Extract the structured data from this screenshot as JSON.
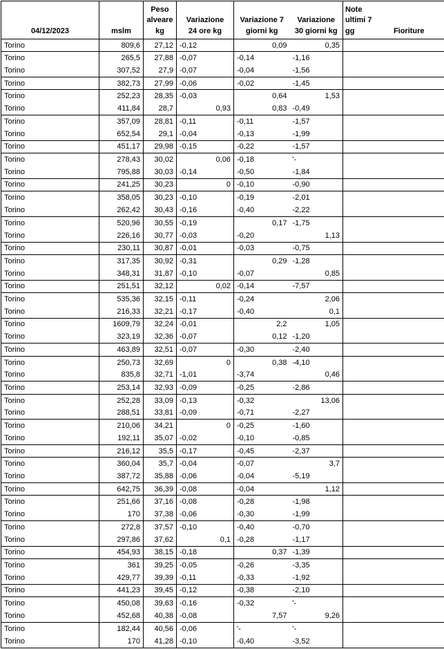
{
  "colors": {
    "border": "#000000",
    "text": "#000000",
    "background": "#ffffff"
  },
  "header": {
    "date": "04/12/2023",
    "mslm": "mslm",
    "peso": "Peso\nalveare\nkg",
    "var24": "Variazione\n24 ore kg",
    "var7": "Variazione 7\ngiorni kg",
    "var30": "Variazione\n30 giorni kg",
    "note": "Note\nultimi 7\ngg",
    "fioriture": "Fioriture"
  },
  "rows": [
    {
      "loc": "Torino",
      "mslm": "809,6",
      "peso": "27,12",
      "v24": "-0,12",
      "v7": "0,09",
      "v30": "0,35",
      "note": "",
      "fior": "",
      "end": true
    },
    {
      "loc": "Torino",
      "mslm": "265,5",
      "peso": "27,88",
      "v24": "-0,07",
      "v7": "-0,14",
      "v30": "-1,16",
      "note": "",
      "fior": "",
      "end": false
    },
    {
      "loc": "Torino",
      "mslm": "307,52",
      "peso": "27,9",
      "v24": "-0,07",
      "v7": "-0,04",
      "v30": "-1,56",
      "note": "",
      "fior": "",
      "end": true
    },
    {
      "loc": "Torino",
      "mslm": "382,73",
      "peso": "27,99",
      "v24": "-0,06",
      "v7": "-0,02",
      "v30": "-1,45",
      "note": "",
      "fior": "",
      "end": true
    },
    {
      "loc": "Torino",
      "mslm": "252,23",
      "peso": "28,35",
      "v24": "-0,03",
      "v7": "0,64",
      "v30": "1,53",
      "note": "",
      "fior": "",
      "end": false
    },
    {
      "loc": "Torino",
      "mslm": "411,84",
      "peso": "28,7",
      "v24": "0,93",
      "v7": "0,83",
      "v30": "-0,49",
      "note": "",
      "fior": "",
      "end": true
    },
    {
      "loc": "Torino",
      "mslm": "357,09",
      "peso": "28,81",
      "v24": "-0,11",
      "v7": "-0,11",
      "v30": "-1,57",
      "note": "",
      "fior": "",
      "end": false
    },
    {
      "loc": "Torino",
      "mslm": "652,54",
      "peso": "29,1",
      "v24": "-0,04",
      "v7": "-0,13",
      "v30": "-1,99",
      "note": "",
      "fior": "",
      "end": true
    },
    {
      "loc": "Torino",
      "mslm": "451,17",
      "peso": "29,98",
      "v24": "-0,15",
      "v7": "-0,22",
      "v30": "-1,57",
      "note": "",
      "fior": "",
      "end": true
    },
    {
      "loc": "Torino",
      "mslm": "278,43",
      "peso": "30,02",
      "v24": "0,06",
      "v7": "-0,18",
      "v30": "'-",
      "note": "",
      "fior": "",
      "end": false
    },
    {
      "loc": "Torino",
      "mslm": "795,88",
      "peso": "30,03",
      "v24": "-0,14",
      "v7": "-0,50",
      "v30": "-1,84",
      "note": "",
      "fior": "",
      "end": true
    },
    {
      "loc": "Torino",
      "mslm": "241,25",
      "peso": "30,23",
      "v24": "0",
      "v7": "-0,10",
      "v30": "-0,90",
      "note": "",
      "fior": "",
      "end": true
    },
    {
      "loc": "Torino",
      "mslm": "358,05",
      "peso": "30,23",
      "v24": "-0,10",
      "v7": "-0,19",
      "v30": "-2,01",
      "note": "",
      "fior": "",
      "end": false
    },
    {
      "loc": "Torino",
      "mslm": "262,42",
      "peso": "30,43",
      "v24": "-0,16",
      "v7": "-0,40",
      "v30": "-2,22",
      "note": "",
      "fior": "",
      "end": true
    },
    {
      "loc": "Torino",
      "mslm": "520,96",
      "peso": "30,55",
      "v24": "-0,19",
      "v7": "0,17",
      "v30": "-1,75",
      "note": "",
      "fior": "",
      "end": false
    },
    {
      "loc": "Torino",
      "mslm": "226,16",
      "peso": "30,77",
      "v24": "-0,03",
      "v7": "-0,20",
      "v30": "1,13",
      "note": "",
      "fior": "",
      "end": true
    },
    {
      "loc": "Torino",
      "mslm": "230,11",
      "peso": "30,87",
      "v24": "-0,01",
      "v7": "-0,03",
      "v30": "-0,75",
      "note": "",
      "fior": "",
      "end": true
    },
    {
      "loc": "Torino",
      "mslm": "317,35",
      "peso": "30,92",
      "v24": "-0,31",
      "v7": "0,29",
      "v30": "-1,28",
      "note": "",
      "fior": "",
      "end": false
    },
    {
      "loc": "Torino",
      "mslm": "348,31",
      "peso": "31,87",
      "v24": "-0,10",
      "v7": "-0,07",
      "v30": "0,85",
      "note": "",
      "fior": "",
      "end": true
    },
    {
      "loc": "Torino",
      "mslm": "251,51",
      "peso": "32,12",
      "v24": "0,02",
      "v7": "-0,14",
      "v30": "-7,57",
      "note": "",
      "fior": "",
      "end": true
    },
    {
      "loc": "Torino",
      "mslm": "535,36",
      "peso": "32,15",
      "v24": "-0,11",
      "v7": "-0,24",
      "v30": "2,06",
      "note": "",
      "fior": "",
      "end": false
    },
    {
      "loc": "Torino",
      "mslm": "216,33",
      "peso": "32,21",
      "v24": "-0,17",
      "v7": "-0,40",
      "v30": "0,1",
      "note": "",
      "fior": "",
      "end": true
    },
    {
      "loc": "Torino",
      "mslm": "1609,79",
      "peso": "32,24",
      "v24": "-0,01",
      "v7": "2,2",
      "v30": "1,05",
      "note": "",
      "fior": "",
      "end": false
    },
    {
      "loc": "Torino",
      "mslm": "323,19",
      "peso": "32,36",
      "v24": "-0,07",
      "v7": "0,12",
      "v30": "-1,20",
      "note": "",
      "fior": "",
      "end": true
    },
    {
      "loc": "Torino",
      "mslm": "463,89",
      "peso": "32,51",
      "v24": "-0,07",
      "v7": "-0,30",
      "v30": "-2,40",
      "note": "",
      "fior": "",
      "end": true
    },
    {
      "loc": "Torino",
      "mslm": "250,73",
      "peso": "32,69",
      "v24": "0",
      "v7": "0,38",
      "v30": "-4,10",
      "note": "",
      "fior": "",
      "end": false
    },
    {
      "loc": "Torino",
      "mslm": "835,8",
      "peso": "32,71",
      "v24": "-1,01",
      "v7": "-3,74",
      "v30": "0,46",
      "note": "",
      "fior": "",
      "end": true
    },
    {
      "loc": "Torino",
      "mslm": "253,14",
      "peso": "32,93",
      "v24": "-0,09",
      "v7": "-0,25",
      "v30": "-2,86",
      "note": "",
      "fior": "",
      "end": true
    },
    {
      "loc": "Torino",
      "mslm": "252,28",
      "peso": "33,09",
      "v24": "-0,13",
      "v7": "-0,32",
      "v30": "13,06",
      "note": "",
      "fior": "",
      "end": false
    },
    {
      "loc": "Torino",
      "mslm": "288,51",
      "peso": "33,81",
      "v24": "-0,09",
      "v7": "-0,71",
      "v30": "-2,27",
      "note": "",
      "fior": "",
      "end": true
    },
    {
      "loc": "Torino",
      "mslm": "210,06",
      "peso": "34,21",
      "v24": "0",
      "v7": "-0,25",
      "v30": "-1,60",
      "note": "",
      "fior": "",
      "end": false
    },
    {
      "loc": "Torino",
      "mslm": "192,11",
      "peso": "35,07",
      "v24": "-0,02",
      "v7": "-0,10",
      "v30": "-0,85",
      "note": "",
      "fior": "",
      "end": true
    },
    {
      "loc": "Torino",
      "mslm": "216,12",
      "peso": "35,5",
      "v24": "-0,17",
      "v7": "-0,45",
      "v30": "-2,37",
      "note": "",
      "fior": "",
      "end": true
    },
    {
      "loc": "Torino",
      "mslm": "360,04",
      "peso": "35,7",
      "v24": "-0,04",
      "v7": "-0,07",
      "v30": "3,7",
      "note": "",
      "fior": "",
      "end": false
    },
    {
      "loc": "Torino",
      "mslm": "387,72",
      "peso": "35,88",
      "v24": "-0,06",
      "v7": "-0,04",
      "v30": "-5,19",
      "note": "",
      "fior": "",
      "end": true
    },
    {
      "loc": "Torino",
      "mslm": "642,75",
      "peso": "36,39",
      "v24": "-0,08",
      "v7": "-0,04",
      "v30": "1,12",
      "note": "",
      "fior": "",
      "end": true
    },
    {
      "loc": "Torino",
      "mslm": "251,66",
      "peso": "37,16",
      "v24": "-0,08",
      "v7": "-0,28",
      "v30": "-1,98",
      "note": "",
      "fior": "",
      "end": false
    },
    {
      "loc": "Torino",
      "mslm": "170",
      "peso": "37,38",
      "v24": "-0,06",
      "v7": "-0,30",
      "v30": "-1,99",
      "note": "",
      "fior": "",
      "end": true
    },
    {
      "loc": "Torino",
      "mslm": "272,8",
      "peso": "37,57",
      "v24": "-0,10",
      "v7": "-0,40",
      "v30": "-0,70",
      "note": "",
      "fior": "",
      "end": false
    },
    {
      "loc": "Torino",
      "mslm": "297,86",
      "peso": "37,62",
      "v24": "0,1",
      "v7": "-0,28",
      "v30": "-1,17",
      "note": "",
      "fior": "",
      "end": true
    },
    {
      "loc": "Torino",
      "mslm": "454,93",
      "peso": "38,15",
      "v24": "-0,18",
      "v7": "0,37",
      "v30": "-1,39",
      "note": "",
      "fior": "",
      "end": true
    },
    {
      "loc": "Torino",
      "mslm": "361",
      "peso": "39,25",
      "v24": "-0,05",
      "v7": "-0,26",
      "v30": "-3,35",
      "note": "",
      "fior": "",
      "end": false
    },
    {
      "loc": "Torino",
      "mslm": "429,77",
      "peso": "39,39",
      "v24": "-0,11",
      "v7": "-0,33",
      "v30": "-1,92",
      "note": "",
      "fior": "",
      "end": true
    },
    {
      "loc": "Torino",
      "mslm": "441,23",
      "peso": "39,45",
      "v24": "-0,12",
      "v7": "-0,38",
      "v30": "-2,10",
      "note": "",
      "fior": "",
      "end": true
    },
    {
      "loc": "Torino",
      "mslm": "450,08",
      "peso": "39,63",
      "v24": "-0,16",
      "v7": "-0,32",
      "v30": "'-",
      "note": "",
      "fior": "",
      "end": false
    },
    {
      "loc": "Torino",
      "mslm": "452,68",
      "peso": "40,38",
      "v24": "-0,08",
      "v7": "7,57",
      "v30": "9,26",
      "note": "",
      "fior": "",
      "end": true
    },
    {
      "loc": "Torino",
      "mslm": "182,44",
      "peso": "40,56",
      "v24": "-0,06",
      "v7": "'-",
      "v30": "'-",
      "note": "",
      "fior": "",
      "end": false
    },
    {
      "loc": "Torino",
      "mslm": "170",
      "peso": "41,28",
      "v24": "-0,10",
      "v7": "-0,40",
      "v30": "-3,52",
      "note": "",
      "fior": "",
      "end": true
    }
  ]
}
